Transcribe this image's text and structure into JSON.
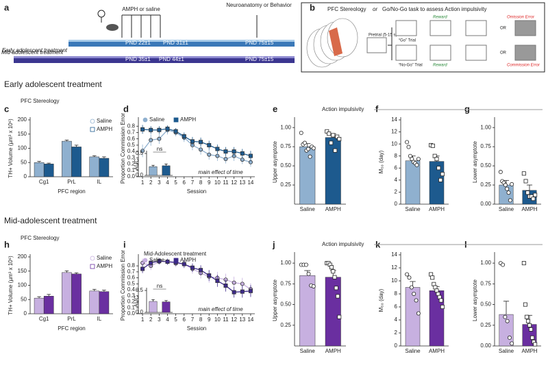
{
  "panel_labels": [
    "a",
    "b",
    "c",
    "d",
    "e",
    "f",
    "g",
    "h",
    "i",
    "j",
    "k",
    "l"
  ],
  "panel_a": {
    "treatment_label": "AMPH or saline",
    "endpoint": "Neuroanatomy or Behavior",
    "early": {
      "label": "Early adolescent treatment",
      "days": [
        "PND 22±1",
        "PND 31±1",
        "PND 75±15"
      ]
    },
    "mid": {
      "label": "Mid-adolescent treatment",
      "days": [
        "PND 35±1",
        "PND 44±1",
        "PND 75±15"
      ]
    }
  },
  "panel_b": {
    "title_left": "PFC Stereology",
    "or": "or",
    "title_right": "Go/No-Go task to assess Action impulsivity",
    "pretrial": "Pretrial (5-15 s)",
    "go_trial": "“Go” Trial",
    "nogo_trial": "“No-Go” Trial",
    "reward_go": "Reward",
    "reward_nogo": "Reward",
    "omission": "Omission Error",
    "commission": "Commission Error",
    "or_labels": [
      "OR",
      "OR"
    ]
  },
  "sections": {
    "early": "Early adolescent treatment",
    "mid": "Mid-adolescent treatment",
    "stereology": [
      "PFC Stereology",
      "PFC Stereology"
    ],
    "impulsivity": [
      "Action impulsivity",
      "Action impulsivity"
    ]
  },
  "chart_data": [
    {
      "type": "bar",
      "categories": [
        "Cg1",
        "PrL",
        "IL"
      ],
      "xlabel": "PFC region",
      "ylabel": "TH+ Volume (µm³ x 10⁶)",
      "ylim": [
        0,
        200
      ],
      "yticks": [
        0,
        50,
        100,
        150,
        200
      ],
      "legend": "top-right",
      "series": [
        {
          "name": "Saline",
          "color": "#8fb0cf",
          "marker": "circle",
          "values": [
            50,
            125,
            70
          ],
          "errors": [
            4,
            4,
            4
          ]
        },
        {
          "name": "AMPH",
          "color": "#1d5a8e",
          "marker": "square",
          "values": [
            45,
            105,
            65
          ],
          "errors": [
            3,
            6,
            5
          ]
        }
      ]
    },
    {
      "type": "line",
      "xlabel": "Session",
      "ylabel": "Proportion Commission Error",
      "annotation": "main effect of time",
      "x": [
        1,
        2,
        3,
        4,
        5,
        6,
        7,
        8,
        9,
        10,
        11,
        12,
        13,
        14
      ],
      "xlim": [
        0.5,
        14.5
      ],
      "xticks": [
        1,
        2,
        3,
        4,
        5,
        6,
        7,
        8,
        9,
        10,
        11,
        12,
        13,
        14
      ],
      "ylim": [
        0,
        0.9
      ],
      "yticks": [
        {
          "value": 0,
          "label": "0.0"
        },
        0.1,
        0.2,
        0.3,
        0.4,
        0.5,
        0.6,
        0.7,
        0.8
      ],
      "legend": "top",
      "series": [
        {
          "name": "Saline",
          "color": "#8fb0cf",
          "marker": "circle",
          "values": [
            0.41,
            0.58,
            0.6,
            0.74,
            0.7,
            0.62,
            0.5,
            0.43,
            0.35,
            0.33,
            0.28,
            0.33,
            0.27,
            0.23
          ],
          "errors": [
            0.1,
            0.09,
            0.08,
            0.07,
            0.06,
            0.07,
            0.08,
            0.08,
            0.08,
            0.08,
            0.07,
            0.08,
            0.07,
            0.07
          ]
        },
        {
          "name": "AMPH",
          "color": "#1d5a8e",
          "marker": "square",
          "values": [
            0.75,
            0.74,
            0.74,
            0.76,
            0.72,
            0.64,
            0.56,
            0.55,
            0.5,
            0.44,
            0.4,
            0.4,
            0.37,
            0.33
          ],
          "errors": [
            0.07,
            0.06,
            0.06,
            0.05,
            0.05,
            0.06,
            0.07,
            0.07,
            0.07,
            0.07,
            0.07,
            0.07,
            0.07,
            0.08
          ]
        }
      ]
    },
    {
      "type": "bar",
      "categories": [
        null,
        null
      ],
      "ylabel": "AUC",
      "annotation": "ns",
      "ylim": [
        0,
        0.5
      ],
      "yticks": [
        {
          "value": 0,
          "label": "0.0"
        },
        0.5
      ],
      "values": [
        0.2,
        0.22
      ],
      "errors": [
        0.03,
        0.04
      ],
      "colors": [
        "#8fb0cf",
        "#1d5a8e"
      ]
    },
    {
      "type": "bar",
      "categories": [
        "Saline",
        "AMPH"
      ],
      "ylabel": "Upper asymptote",
      "ylim": [
        0,
        1.1
      ],
      "yticks": [
        0.25,
        {
          "value": 0.5,
          "label": "0.50"
        },
        0.75,
        {
          "value": 1,
          "label": "1.00"
        }
      ],
      "values": [
        0.75,
        0.87
      ],
      "errors": [
        0.04,
        0.05
      ],
      "colors": [
        "#8fb0cf",
        "#1d5a8e"
      ],
      "markers": [
        "circle",
        "square"
      ],
      "points": [
        [
          0.93,
          0.78,
          0.8,
          0.7,
          0.72,
          0.62,
          0.75,
          0.73
        ],
        [
          0.95,
          0.92,
          0.8,
          0.9,
          0.7,
          0.88,
          0.85
        ]
      ]
    },
    {
      "type": "bar",
      "categories": [
        "Saline",
        "AMPH"
      ],
      "ylabel": "M₅₀ (day)",
      "ylim": [
        0,
        14
      ],
      "yticks": [
        0,
        2,
        4,
        6,
        8,
        10,
        12,
        14
      ],
      "values": [
        7.2,
        7.1
      ],
      "errors": [
        0.8,
        0.9
      ],
      "colors": [
        "#8fb0cf",
        "#1d5a8e"
      ],
      "markers": [
        "circle",
        "square"
      ],
      "points": [
        [
          10.3,
          9.5,
          8,
          7.5,
          7,
          6.8,
          6.5,
          7.5
        ],
        [
          9.8,
          9.7,
          8,
          7.5,
          6,
          4,
          5
        ]
      ]
    },
    {
      "type": "bar",
      "categories": [
        "Saline",
        "AMPH"
      ],
      "ylabel": "Lower asymptote",
      "ylim": [
        0,
        1.1
      ],
      "yticks": [
        {
          "value": 0,
          "label": "0.00"
        },
        0.25,
        {
          "value": 0.5,
          "label": "0.50"
        },
        0.75,
        {
          "value": 1,
          "label": "1.00"
        }
      ],
      "values": [
        0.25,
        0.18
      ],
      "errors": [
        0.06,
        0.07
      ],
      "colors": [
        "#8fb0cf",
        "#1d5a8e"
      ],
      "markers": [
        "circle",
        "square"
      ],
      "points": [
        [
          0.42,
          0.3,
          0.28,
          0.25,
          0.2,
          0.15,
          0.05,
          0.26
        ],
        [
          0.4,
          0.3,
          0.15,
          0.1,
          0.1,
          0.07,
          0.12
        ]
      ]
    },
    {
      "type": "bar",
      "categories": [
        "Cg1",
        "PrL",
        "IL"
      ],
      "xlabel": "PFC region",
      "ylabel": "TH+ Volume (µm³ x 10⁶)",
      "ylim": [
        0,
        200
      ],
      "yticks": [
        0,
        50,
        100,
        150,
        200
      ],
      "legend": "top-right",
      "series": [
        {
          "name": "Saline",
          "color": "#c7b0e0",
          "marker": "circle",
          "values": [
            55,
            145,
            80
          ],
          "errors": [
            5,
            6,
            6
          ]
        },
        {
          "name": "AMPH",
          "color": "#6a2fa0",
          "marker": "square",
          "values": [
            62,
            140,
            78
          ],
          "errors": [
            6,
            4,
            5
          ]
        }
      ]
    },
    {
      "type": "line",
      "title": "Mid-Adolescent treatment",
      "xlabel": "Session",
      "ylabel": "Proportion Commission Error",
      "annotation": "main effect of time",
      "x": [
        1,
        2,
        3,
        4,
        5,
        6,
        7,
        8,
        9,
        10,
        11,
        12,
        13,
        14
      ],
      "xlim": [
        0.5,
        14.5
      ],
      "xticks": [
        1,
        2,
        3,
        4,
        5,
        6,
        7,
        8,
        9,
        10,
        11,
        12,
        13,
        14
      ],
      "ylim": [
        0,
        0.95
      ],
      "yticks": [
        {
          "value": 0,
          "label": "0.0"
        },
        0.1,
        0.2,
        0.3,
        0.4,
        0.5,
        0.6,
        0.7,
        0.8
      ],
      "legend": "top",
      "series": [
        {
          "name": "Saline",
          "color": "#c7b0e0",
          "marker": "circle",
          "values": [
            0.85,
            0.8,
            0.87,
            0.87,
            0.84,
            0.83,
            0.75,
            0.68,
            0.62,
            0.6,
            0.57,
            0.52,
            0.5,
            0.41
          ],
          "errors": [
            0.07,
            0.07,
            0.05,
            0.05,
            0.06,
            0.07,
            0.08,
            0.09,
            0.1,
            0.1,
            0.1,
            0.1,
            0.1,
            0.1
          ]
        },
        {
          "name": "AMPH",
          "color": "#3d2a8a",
          "marker": "square",
          "values": [
            0.75,
            0.85,
            0.88,
            0.87,
            0.86,
            0.83,
            0.77,
            0.73,
            0.64,
            0.55,
            0.47,
            0.36,
            0.37,
            0.38
          ],
          "errors": [
            0.07,
            0.06,
            0.05,
            0.05,
            0.05,
            0.06,
            0.07,
            0.08,
            0.09,
            0.1,
            0.1,
            0.09,
            0.1,
            0.1
          ]
        }
      ]
    },
    {
      "type": "bar",
      "categories": [
        null,
        null
      ],
      "ylabel": "AUC",
      "annotation": "ns",
      "ylim": [
        0,
        0.5
      ],
      "yticks": [
        {
          "value": 0,
          "label": "0.0"
        },
        0.5
      ],
      "values": [
        0.25,
        0.24
      ],
      "errors": [
        0.04,
        0.03
      ],
      "colors": [
        "#c7b0e0",
        "#6a2fa0"
      ]
    },
    {
      "type": "bar",
      "categories": [
        "Saline",
        "AMPH"
      ],
      "ylabel": "Upper asymptote",
      "ylim": [
        0,
        1.1
      ],
      "yticks": [
        0.25,
        {
          "value": 0.5,
          "label": "0.50"
        },
        0.75,
        {
          "value": 1,
          "label": "1.00"
        }
      ],
      "values": [
        0.85,
        0.83
      ],
      "errors": [
        0.06,
        0.08
      ],
      "colors": [
        "#c7b0e0",
        "#6a2fa0"
      ],
      "markers": [
        "circle",
        "square"
      ],
      "points": [
        [
          0.98,
          0.98,
          0.98,
          0.87,
          0.73,
          0.72
        ],
        [
          1.0,
          1.0,
          0.98,
          0.95,
          0.9,
          0.83,
          0.7,
          0.6,
          0.35
        ]
      ]
    },
    {
      "type": "bar",
      "categories": [
        "Saline",
        "AMPH"
      ],
      "ylabel": "M₅₀ (day)",
      "ylim": [
        0,
        14
      ],
      "yticks": [
        0,
        2,
        4,
        6,
        8,
        10,
        12,
        14
      ],
      "values": [
        9,
        8.5
      ],
      "errors": [
        0.9,
        0.6
      ],
      "colors": [
        "#c7b0e0",
        "#6a2fa0"
      ],
      "markers": [
        "circle",
        "square"
      ],
      "points": [
        [
          11,
          10.5,
          9,
          8,
          7,
          5
        ],
        [
          11,
          10.5,
          9.5,
          9,
          8.5,
          8,
          7.5,
          7,
          6
        ]
      ]
    },
    {
      "type": "bar",
      "categories": [
        "Saline",
        "AMPH"
      ],
      "ylabel": "Lower asymptote",
      "ylim": [
        0,
        1.1
      ],
      "yticks": [
        {
          "value": 0,
          "label": "0.00"
        },
        0.25,
        {
          "value": 0.5,
          "label": "0.50"
        },
        0.75,
        {
          "value": 1,
          "label": "1.00"
        }
      ],
      "values": [
        0.38,
        0.26
      ],
      "errors": [
        0.16,
        0.11
      ],
      "colors": [
        "#c7b0e0",
        "#6a2fa0"
      ],
      "markers": [
        "circle",
        "square"
      ],
      "points": [
        [
          1.0,
          0.98,
          0.35,
          0.3,
          0.1,
          0.03
        ],
        [
          1.0,
          0.5,
          0.35,
          0.3,
          0.25,
          0.2,
          0.1,
          0.05,
          0.02
        ]
      ]
    }
  ]
}
